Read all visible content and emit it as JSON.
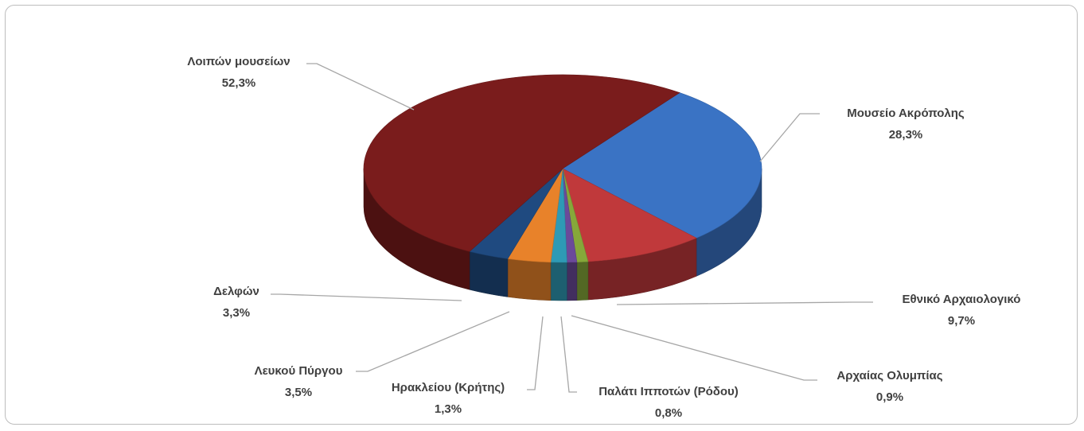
{
  "chart_data": {
    "type": "pie3d",
    "categories": [
      "Μουσείο Ακρόπολης",
      "Εθνικό Αρχαιολογικό",
      "Αρχαίας Ολυμπίας",
      "Παλάτι Ιπποτών (Ρόδου)",
      "Ηρακλείου (Κρήτης)",
      "Λευκού Πύργου",
      "Δελφών",
      "Λοιπών μουσείων"
    ],
    "values": [
      28.3,
      9.7,
      0.9,
      0.8,
      1.3,
      3.5,
      3.3,
      52.3
    ],
    "value_labels": [
      "28,3%",
      "9,7%",
      "0,9%",
      "0,8%",
      "1,3%",
      "3,5%",
      "3,3%",
      "52,3%"
    ],
    "colors": [
      "#3a73c4",
      "#c0393b",
      "#86a83a",
      "#6b4a9a",
      "#2e9ab5",
      "#e8822a",
      "#1f4a80",
      "#7a1c1c"
    ]
  }
}
